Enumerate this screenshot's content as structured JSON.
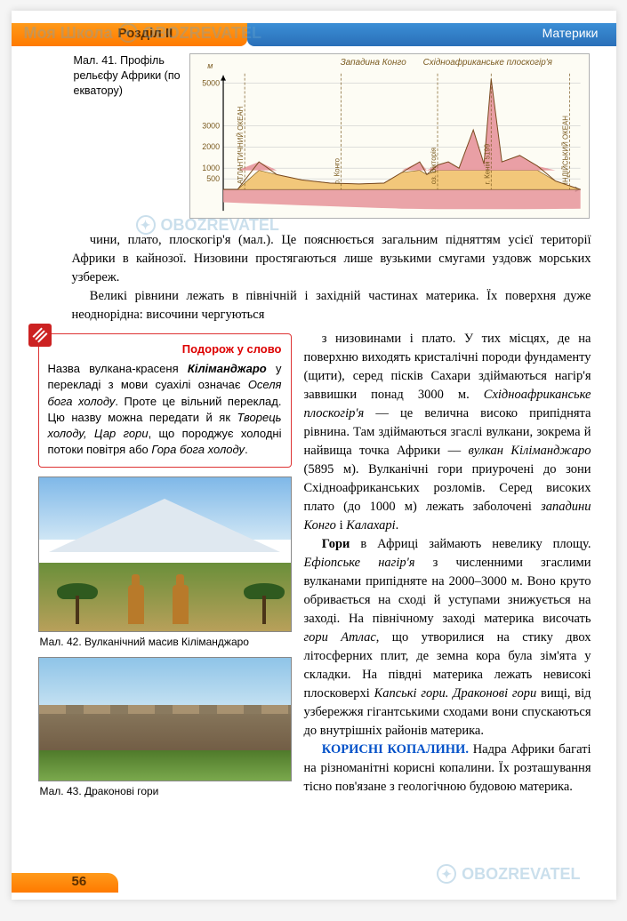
{
  "header": {
    "section": "Розділ II",
    "title_right": "Материки"
  },
  "watermark": {
    "text": "OBOZREVATEL",
    "prefix": "Моя Школа"
  },
  "chart": {
    "caption": "Мал. 41. Профіль рельєфу Африки (по екватору)",
    "type": "area-profile",
    "y_label": "м",
    "ylim": [
      -1000,
      5199
    ],
    "yticks": [
      500,
      1000,
      2000,
      3000,
      5000
    ],
    "xlim": [
      0,
      100
    ],
    "top_labels": [
      {
        "x": 42,
        "text": "Западина Конго"
      },
      {
        "x": 74,
        "text": "Східноафриканське плоскогір'я"
      }
    ],
    "vertical_labels": [
      {
        "x": 6,
        "text": "АТЛАНТИЧНИЙ ОКЕАН"
      },
      {
        "x": 33,
        "text": "р. Конго"
      },
      {
        "x": 60,
        "text": "оз. Вікторія"
      },
      {
        "x": 75,
        "text": "г. Кенія 5199"
      },
      {
        "x": 97,
        "text": "ІНДІЙСЬКИЙ ОКЕАН"
      }
    ],
    "profile_points": [
      [
        0,
        0
      ],
      [
        4,
        0
      ],
      [
        10,
        1300
      ],
      [
        15,
        700
      ],
      [
        22,
        450
      ],
      [
        30,
        300
      ],
      [
        38,
        260
      ],
      [
        45,
        300
      ],
      [
        50,
        800
      ],
      [
        55,
        1300
      ],
      [
        57,
        700
      ],
      [
        60,
        1150
      ],
      [
        63,
        1300
      ],
      [
        66,
        1000
      ],
      [
        70,
        2800
      ],
      [
        73,
        1200
      ],
      [
        75,
        5199
      ],
      [
        78,
        1300
      ],
      [
        83,
        1600
      ],
      [
        88,
        1100
      ],
      [
        93,
        400
      ],
      [
        100,
        0
      ]
    ],
    "underground_depth": -900,
    "colors": {
      "sky_bg": "#fdfcf4",
      "land_fill": "#f2c77a",
      "peak_fill": "#e89aa0",
      "underground": "#e89aa0",
      "grid": "#cccccc",
      "axis": "#000000",
      "label_text": "#7a5a1f"
    },
    "peak_threshold_m": 900,
    "font_size_labels": 9
  },
  "paragraphs": {
    "p0": "чини, плато, плоскогір'я (мал.). Це пояснюється загальним підняттям усієї території Африки в кайнозої. Низовини простягаються лише вузькими смугами уздовж морських узбереж.",
    "p1": "Великі рівнини лежать в північній і західній частинах материка. Їх поверхня дуже неоднорідна: височини чергуються"
  },
  "word_box": {
    "title": "Подорож у слово",
    "text_pre": "Назва вулкана-красеня ",
    "term": "Кіліманджаро",
    "text_mid1": " у перекладі з мови суахілі означає ",
    "ital1": "Оселя бога холоду",
    "text_mid2": ". Проте це вільний переклад. Цю назву можна передати й як ",
    "ital2": "Творець холоду, Цар гори",
    "text_mid3": ", що породжує холодні потоки повітря або ",
    "ital3": "Гора бога холоду",
    "text_end": "."
  },
  "right_column": {
    "p2a": "з низовинами і плато. У тих місцях, де на поверхню виходять кристалічні породи фундаменту (щити), серед пісків Сахари здіймаються нагір'я заввишки понад 3000 м. ",
    "p2_ital1": "Східноафриканське плоскогір'я",
    "p2b": " — це велична високо припіднята рівнина. Там здіймаються згаслі вулкани, зокрема й найвища точка Африки — ",
    "p2_ital2": "вулкан Кіліманджаро",
    "p2c": " (5895 м). Вулканічні гори приурочені до зони Східноафриканських розломів. Серед високих плато (до 1000 м) лежать заболочені ",
    "p2_ital3": "западини Конго",
    "p2d": " і ",
    "p2_ital4": "Калахарі",
    "p2e": ".",
    "p3_bold": "Гори",
    "p3a": " в Африці займають невелику площу. ",
    "p3_ital1": "Ефіопське нагір'я",
    "p3b": " з численними згаслими вулканами припідняте на 2000–3000 м. Воно круто обривається на сході й уступами знижується на заході. На північному заході материка височать ",
    "p3_ital2": "гори Атлас",
    "p3c": ", що утворилися на стику двох літосферних плит, де земна кора була зім'ята у складки. На півдні материка лежать невисокі плосковерхі ",
    "p3_ital3": "Капські гори. Драконові гори",
    "p3d": " вищі, від узбережжя гігантськими сходами вони спускаються до внутрішніх районів материка.",
    "p4_heading": "КОРИСНІ КОПАЛИНИ.",
    "p4a": " Надра Африки багаті на різноманітні корисні копалини. Їх розташування тісно пов'язане з геологічною будовою материка."
  },
  "photos": {
    "fig42": "Мал. 42. Вулканічний масив Кіліманджаро",
    "fig43": "Мал. 43. Драконові гори"
  },
  "page_number": "56"
}
